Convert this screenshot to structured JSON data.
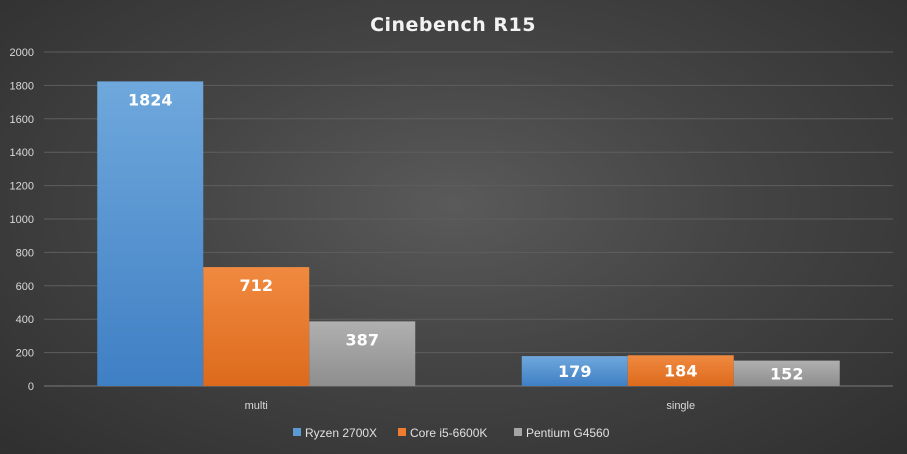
{
  "chart_data": {
    "type": "bar",
    "title": "Cinebench  R15",
    "categories": [
      "multi",
      "single"
    ],
    "series": [
      {
        "name": "Ryzen 2700X",
        "values": [
          1824,
          179
        ],
        "color": "#5b9bd5"
      },
      {
        "name": "Core i5-6600K",
        "values": [
          712,
          184
        ],
        "color": "#ed7d31"
      },
      {
        "name": "Pentium G4560",
        "values": [
          387,
          152
        ],
        "color": "#a5a5a5"
      }
    ],
    "ylim": [
      0,
      2000
    ],
    "yticks": [
      0,
      200,
      400,
      600,
      800,
      1000,
      1200,
      1400,
      1600,
      1800,
      2000
    ],
    "grid": true,
    "legend_position": "bottom",
    "data_labels": true
  }
}
